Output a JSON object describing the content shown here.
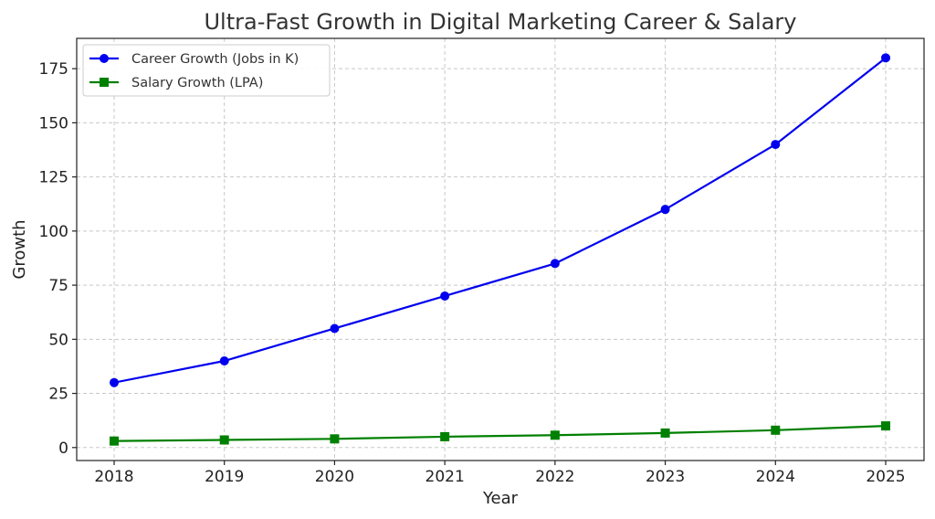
{
  "chart_data": {
    "type": "line",
    "title": "Ultra-Fast Growth in Digital Marketing Career & Salary",
    "xlabel": "Year",
    "ylabel": "Growth",
    "categories": [
      "2018",
      "2019",
      "2020",
      "2021",
      "2022",
      "2023",
      "2024",
      "2025"
    ],
    "yticks": [
      0,
      25,
      50,
      75,
      100,
      125,
      150,
      175
    ],
    "ylim": [
      -6,
      189
    ],
    "grid": true,
    "legend_position": "top-left",
    "series": [
      {
        "name": "Career Growth (Jobs in K)",
        "values": [
          30,
          40,
          55,
          70,
          85,
          110,
          140,
          180
        ],
        "color": "#0000ee",
        "marker": "circle"
      },
      {
        "name": "Salary Growth (LPA)",
        "values": [
          3,
          3.5,
          4,
          5,
          5.7,
          6.7,
          8,
          10
        ],
        "color": "#008000",
        "marker": "square"
      }
    ]
  }
}
